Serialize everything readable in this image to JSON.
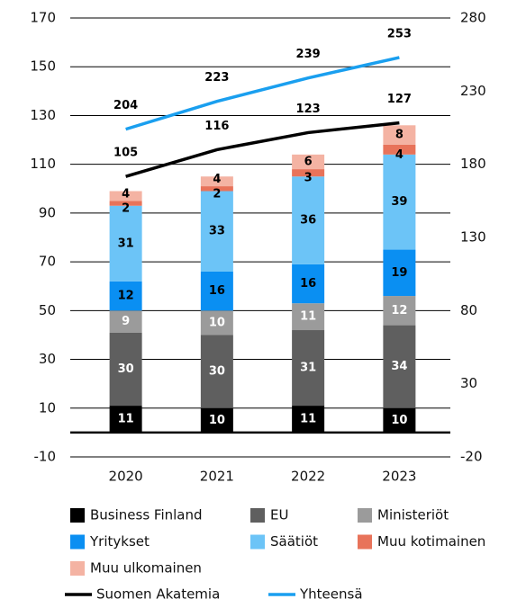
{
  "chart_data": {
    "type": "bar",
    "stacked": true,
    "categories": [
      "2020",
      "2021",
      "2022",
      "2023"
    ],
    "series": [
      {
        "name": "Business Finland",
        "color": "#000000",
        "values": [
          11,
          10,
          11,
          10
        ]
      },
      {
        "name": "EU",
        "color": "#5f5f5f",
        "values": [
          30,
          30,
          31,
          34
        ]
      },
      {
        "name": "Ministeriöt",
        "color": "#9b9b9b",
        "values": [
          9,
          10,
          11,
          12
        ]
      },
      {
        "name": "Yritykset",
        "color": "#0a8ff2",
        "values": [
          12,
          16,
          16,
          19
        ]
      },
      {
        "name": "Säätiöt",
        "color": "#6cc4f7",
        "values": [
          31,
          33,
          36,
          39
        ]
      },
      {
        "name": "Muu kotimainen",
        "color": "#e8735a",
        "values": [
          2,
          2,
          3,
          4
        ]
      },
      {
        "name": "Muu ulkomainen",
        "color": "#f4b3a3",
        "values": [
          4,
          4,
          6,
          8
        ]
      },
      {
        "name": "Suomen Akatemia",
        "type": "line",
        "color": "#000000",
        "values": [
          105,
          116,
          123,
          127
        ]
      },
      {
        "name": "Yhteensä",
        "type": "line",
        "axis": "y2",
        "color": "#1a9fef",
        "values": [
          204,
          223,
          239,
          253
        ]
      }
    ],
    "ylim": [
      -10,
      170
    ],
    "yticks": [
      -10,
      10,
      30,
      50,
      70,
      90,
      110,
      130,
      150,
      170
    ],
    "y2lim": [
      -20,
      280
    ],
    "y2ticks": [
      -20,
      30,
      80,
      130,
      180,
      230,
      280
    ],
    "grid": true
  }
}
